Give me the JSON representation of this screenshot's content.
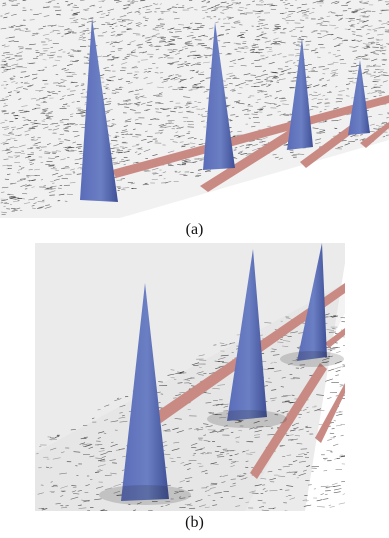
{
  "figure": {
    "panels": [
      {
        "label": "(a)",
        "cones": [
          "cone",
          "cone",
          "cone",
          "cone"
        ],
        "rails": [
          "rail",
          "rail",
          "rail"
        ]
      },
      {
        "label": "(b)",
        "cones": [
          "cone",
          "cone",
          "cone"
        ],
        "rails": [
          "rail",
          "rail",
          "rail"
        ]
      }
    ]
  },
  "colors": {
    "cone_light": "#6b7fc4",
    "cone_dark": "#3f4f96",
    "rail": "#c98a84",
    "rail_dark": "#a9655f",
    "ground": "#ebebeb",
    "streak": "#222222"
  }
}
